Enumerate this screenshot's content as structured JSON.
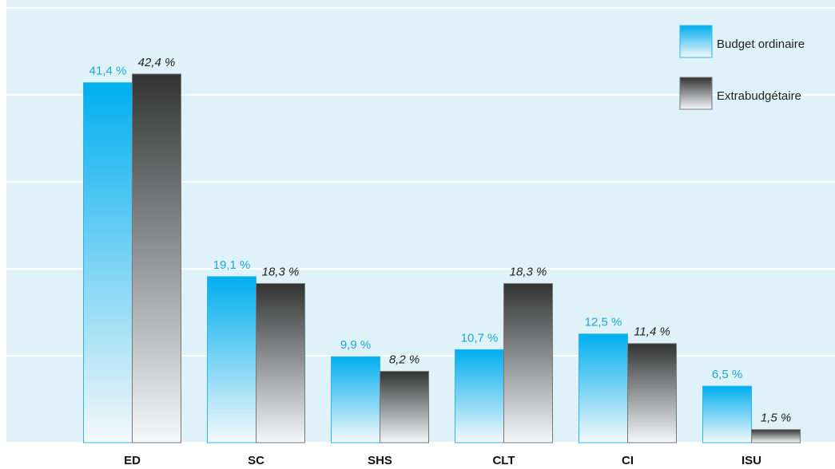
{
  "chart_data": {
    "type": "bar",
    "categories": [
      "ED",
      "SC",
      "SHS",
      "CLT",
      "CI",
      "ISU"
    ],
    "series": [
      {
        "name": "Budget ordinaire",
        "color": "#00aeef",
        "values": [
          41.4,
          19.1,
          9.9,
          10.7,
          12.5,
          6.5
        ],
        "value_labels": [
          "41,4 %",
          "19,1 %",
          "9,9 %",
          "10,7 %",
          "12,5 %",
          "6,5 %"
        ]
      },
      {
        "name": "Extrabudgétaire",
        "color": "#333333",
        "values": [
          42.4,
          18.3,
          8.2,
          18.3,
          11.4,
          1.5
        ],
        "value_labels": [
          "42,4 %",
          "18,3 %",
          "8,2 %",
          "18,3 %",
          "11,4 %",
          "1,5 %"
        ]
      }
    ],
    "ylim": [
      0,
      50
    ],
    "yticks": [
      0,
      10,
      20,
      30,
      40,
      50
    ],
    "grid": true,
    "legend": "top-right"
  }
}
